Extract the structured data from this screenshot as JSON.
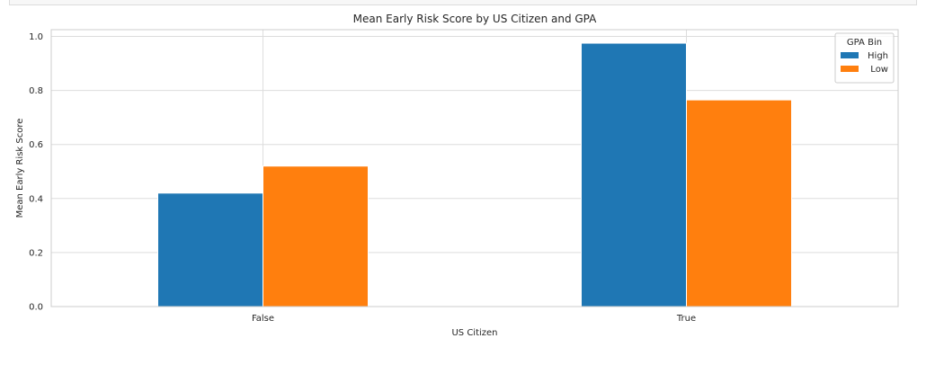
{
  "chart_data": {
    "type": "bar",
    "title": "Mean Early Risk Score by US Citizen and GPA",
    "xlabel": "US Citizen",
    "ylabel": "Mean Early Risk Score",
    "categories": [
      "False",
      "True"
    ],
    "series": [
      {
        "name": "High",
        "values": [
          0.42,
          0.975
        ],
        "color": "#1f77b4"
      },
      {
        "name": "Low",
        "values": [
          0.52,
          0.765
        ],
        "color": "#ff7f0e"
      }
    ],
    "ylim": [
      0,
      1.025
    ],
    "yticks": [
      0.0,
      0.2,
      0.4,
      0.6,
      0.8,
      1.0
    ],
    "ytick_labels": [
      "0.0",
      "0.2",
      "0.4",
      "0.6",
      "0.8",
      "1.0"
    ],
    "grid": true,
    "legend": {
      "title": "GPA Bin",
      "placement": "top-right"
    }
  }
}
